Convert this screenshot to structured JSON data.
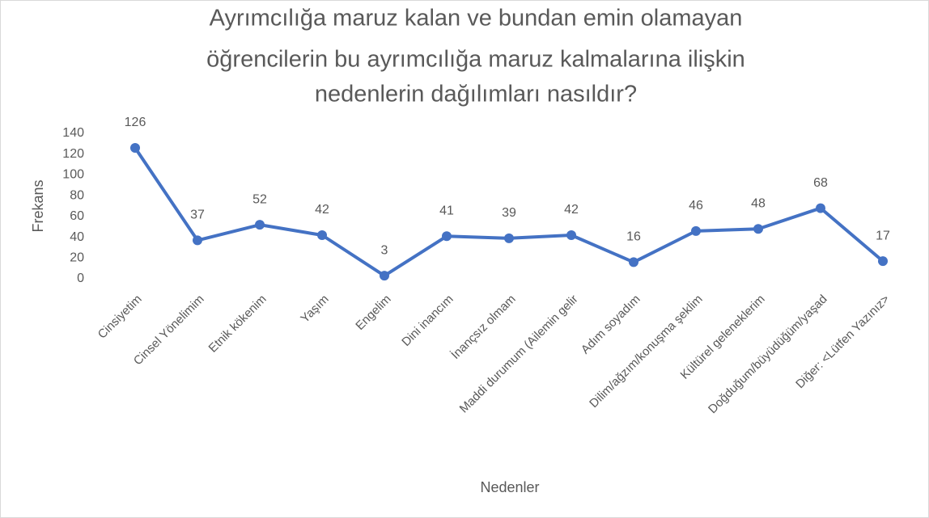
{
  "chart_data": {
    "type": "line",
    "title": [
      "Ayrımcılığa maruz kalan ve bundan emin olamayan",
      "öğrencilerin bu ayrımcılığa maruz kalmalarına ilişkin",
      "nedenlerin dağılımları nasıldır?"
    ],
    "x_label": "Nedenler",
    "y_label": "Frekans",
    "categories": [
      "Cinsiyetim",
      "Cinsel Yönelimim",
      "Etnik kökenim",
      "Yaşım",
      "Engelim",
      "Dini inancım",
      "İnançsız olmam",
      "Maddi durumum (Ailemin gelir",
      "Adım soyadım",
      "Dilim/ağzım/konuşma şeklim",
      "Kültürel geleneklerim",
      "Doğduğum/büyüdüğüm/yaşad",
      "Diğer: <Lütfen Yazınız>"
    ],
    "values": [
      126,
      37,
      52,
      42,
      3,
      41,
      39,
      42,
      16,
      46,
      48,
      68,
      17
    ],
    "color": "#4472c4",
    "ylim": [
      0,
      140
    ],
    "yticks": [
      0,
      20,
      40,
      60,
      80,
      100,
      120,
      140
    ],
    "grid": false
  }
}
